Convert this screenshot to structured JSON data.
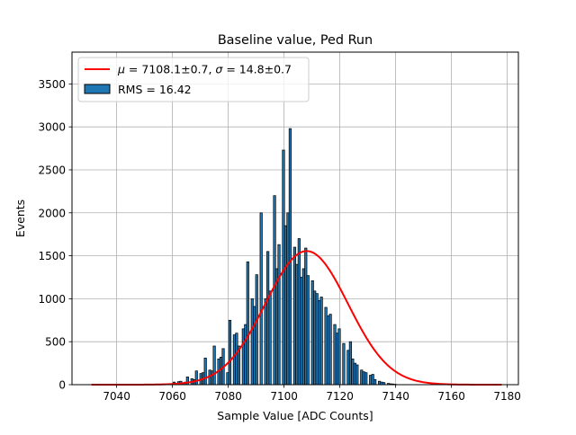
{
  "chart_data": {
    "type": "bar",
    "title": "Baseline value, Ped Run",
    "xlabel": "Sample Value [ADC Counts]",
    "ylabel": "Events",
    "xlim": [
      7024,
      7184
    ],
    "ylim": [
      0,
      3870
    ],
    "xticks": [
      7040,
      7060,
      7080,
      7100,
      7120,
      7140,
      7160,
      7180
    ],
    "yticks": [
      0,
      500,
      1000,
      1500,
      2000,
      2500,
      3000,
      3500
    ],
    "grid": true,
    "legend": {
      "placement": "upper-left",
      "entries": [
        {
          "kind": "line",
          "label_prefix": "μ",
          "label_text": " = 7108.1±0.7, ",
          "label_sym2": "σ",
          "label_text2": " = 14.8±0.7",
          "color": "#ff0000"
        },
        {
          "kind": "patch",
          "label": "RMS = 16.42",
          "color": "#1f77b4"
        }
      ]
    },
    "histogram": {
      "name": "RMS = 16.42",
      "bin_start": 7060.2,
      "bin_width": 0.8,
      "color": "#1f77b4",
      "edgecolor": "#000000",
      "values": [
        30,
        0,
        35,
        40,
        20,
        30,
        90,
        0,
        70,
        60,
        160,
        0,
        130,
        140,
        310,
        0,
        170,
        160,
        450,
        0,
        300,
        320,
        420,
        0,
        140,
        750,
        0,
        580,
        600,
        450,
        0,
        650,
        700,
        1430,
        0,
        1000,
        910,
        1280,
        0,
        2000,
        0,
        1000,
        1550,
        1090,
        0,
        2200,
        1350,
        1630,
        0,
        2730,
        1850,
        2000,
        2980,
        0,
        1600,
        1400,
        1700,
        1250,
        1350,
        1590,
        1270,
        0,
        1210,
        1090,
        1060,
        980,
        1020,
        0,
        900,
        800,
        820,
        0,
        700,
        600,
        650,
        0,
        480,
        0,
        400,
        500,
        300,
        250,
        230,
        0,
        170,
        150,
        140,
        0,
        110,
        120,
        60,
        0,
        40,
        30,
        25,
        0,
        15,
        10,
        8,
        5
      ]
    },
    "fit": {
      "name": "μ = 7108.1±0.7, σ = 14.8±0.7",
      "color": "#ff0000",
      "mu": 7108.1,
      "sigma": 14.8,
      "amplitude": 1555,
      "x_range": [
        7031,
        7178
      ]
    }
  }
}
